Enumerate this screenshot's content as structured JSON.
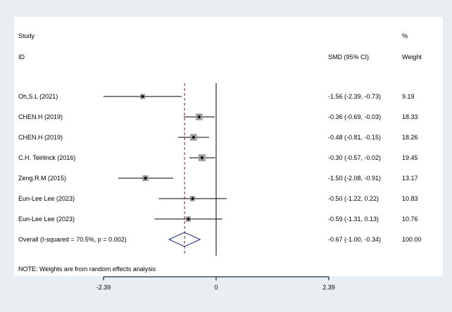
{
  "chart_data": {
    "type": "forest",
    "headers": {
      "study_top": "Study",
      "study_bottom": "ID",
      "effect": "SMD (95% CI)",
      "weight_top": "%",
      "weight_bottom": "Weight"
    },
    "studies": [
      {
        "label": "Oh,S.L (2021)",
        "est": -1.56,
        "lo": -2.39,
        "hi": -0.73,
        "ci_text": "-1.56 (-2.39, -0.73)",
        "weight": "9.19"
      },
      {
        "label": "CHEN.H (2019)",
        "est": -0.36,
        "lo": -0.69,
        "hi": -0.03,
        "ci_text": "-0.36 (-0.69, -0.03)",
        "weight": "18.33"
      },
      {
        "label": "CHEN.H (2019)",
        "est": -0.48,
        "lo": -0.81,
        "hi": -0.15,
        "ci_text": "-0.48 (-0.81, -0.15)",
        "weight": "18.26"
      },
      {
        "label": "C.H. Teirlinck (2016)",
        "est": -0.3,
        "lo": -0.57,
        "hi": -0.02,
        "ci_text": "-0.30 (-0.57, -0.02)",
        "weight": "19.45"
      },
      {
        "label": "Zeng.R.M (2015)",
        "est": -1.5,
        "lo": -2.08,
        "hi": -0.91,
        "ci_text": "-1.50 (-2.08, -0.91)",
        "weight": "13.17"
      },
      {
        "label": "Eun-Lee Lee  (2023)",
        "est": -0.5,
        "lo": -1.22,
        "hi": 0.22,
        "ci_text": "-0.50 (-1.22, 0.22)",
        "weight": "10.83"
      },
      {
        "label": "Eun-Lee Lee  (2023)",
        "est": -0.59,
        "lo": -1.31,
        "hi": 0.13,
        "ci_text": "-0.59 (-1.31, 0.13)",
        "weight": "10.76"
      }
    ],
    "overall": {
      "label": "Overall  (I-squared = 70.5%, p = 0.002)",
      "est": -0.67,
      "lo": -1.0,
      "hi": -0.34,
      "ci_text": "-0.67 (-1.00, -0.34)",
      "weight": "100.00"
    },
    "note": "NOTE: Weights are from random effects analysis",
    "x_ticks": [
      {
        "value": -2.39,
        "label": "-2.39"
      },
      {
        "value": 0,
        "label": "0"
      },
      {
        "value": 2.39,
        "label": "2.39"
      }
    ],
    "xlim": [
      -2.39,
      2.39
    ],
    "colors": {
      "ci_line": "#000000",
      "box": "#a0a0a0",
      "overall_line": "#8b1a1a",
      "background": "#e9eef3"
    }
  }
}
